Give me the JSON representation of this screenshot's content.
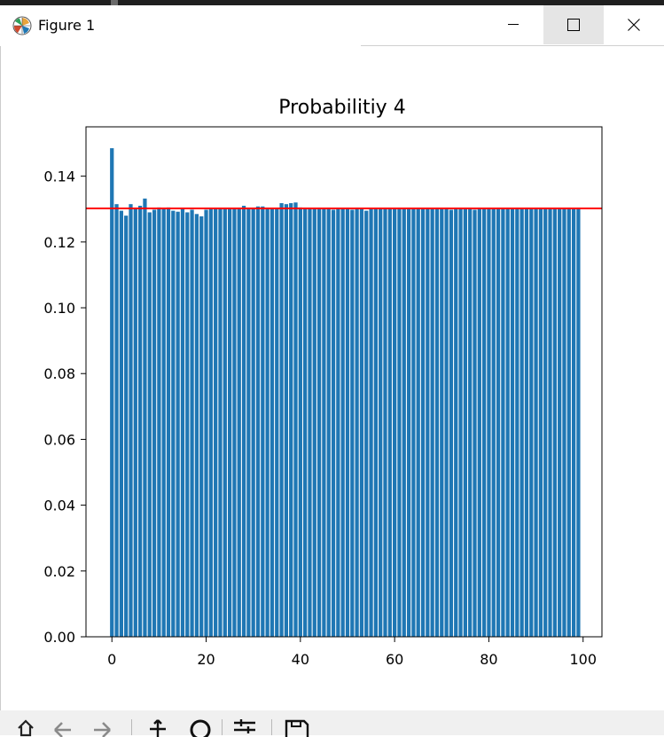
{
  "window": {
    "title": "Figure 1",
    "app_icon": "matplotlib-icon"
  },
  "controls": {
    "minimize_icon": "minimize-icon",
    "maximize_icon": "maximize-icon",
    "close_icon": "close-icon"
  },
  "toolbar": {
    "icons": [
      "home-icon",
      "back-icon",
      "forward-icon",
      "pan-icon",
      "zoom-icon",
      "configure-subplots-icon",
      "save-icon"
    ]
  },
  "chart_data": {
    "type": "bar",
    "title": "Probabilitiy 4",
    "xlabel": "",
    "ylabel": "",
    "x": [
      0,
      1,
      2,
      3,
      4,
      5,
      6,
      7,
      8,
      9,
      10,
      11,
      12,
      13,
      14,
      15,
      16,
      17,
      18,
      19,
      20,
      21,
      22,
      23,
      24,
      25,
      26,
      27,
      28,
      29,
      30,
      31,
      32,
      33,
      34,
      35,
      36,
      37,
      38,
      39,
      40,
      41,
      42,
      43,
      44,
      45,
      46,
      47,
      48,
      49,
      50,
      51,
      52,
      53,
      54,
      55,
      56,
      57,
      58,
      59,
      60,
      61,
      62,
      63,
      64,
      65,
      66,
      67,
      68,
      69,
      70,
      71,
      72,
      73,
      74,
      75,
      76,
      77,
      78,
      79,
      80,
      81,
      82,
      83,
      84,
      85,
      86,
      87,
      88,
      89,
      90,
      91,
      92,
      93,
      94,
      95,
      96,
      97,
      98,
      99
    ],
    "values": [
      0.1485,
      0.1315,
      0.1295,
      0.128,
      0.1315,
      0.13,
      0.131,
      0.1332,
      0.129,
      0.1298,
      0.1305,
      0.13,
      0.1305,
      0.1295,
      0.1292,
      0.13,
      0.129,
      0.1298,
      0.1285,
      0.1278,
      0.1298,
      0.13,
      0.13,
      0.1303,
      0.13,
      0.13,
      0.1302,
      0.1302,
      0.131,
      0.1303,
      0.1302,
      0.1308,
      0.1308,
      0.1302,
      0.13,
      0.13,
      0.1318,
      0.1315,
      0.1318,
      0.132,
      0.1305,
      0.1302,
      0.13,
      0.13,
      0.13,
      0.13,
      0.1302,
      0.1298,
      0.13,
      0.13,
      0.13,
      0.1298,
      0.13,
      0.13,
      0.1295,
      0.13,
      0.1302,
      0.13,
      0.13,
      0.13,
      0.13,
      0.13,
      0.13,
      0.1302,
      0.1302,
      0.13,
      0.13,
      0.13,
      0.13,
      0.13,
      0.13,
      0.1302,
      0.1298,
      0.13,
      0.13,
      0.13,
      0.13,
      0.1298,
      0.13,
      0.13,
      0.1302,
      0.13,
      0.13,
      0.13,
      0.13,
      0.13,
      0.13,
      0.13,
      0.13,
      0.13,
      0.13,
      0.13,
      0.13,
      0.13,
      0.13,
      0.13,
      0.13,
      0.13,
      0.13,
      0.13
    ],
    "hline": 0.1302,
    "xlim": [
      -5.5,
      104
    ],
    "ylim": [
      0,
      0.155
    ],
    "xticks": [
      0,
      20,
      40,
      60,
      80,
      100
    ],
    "xtick_labels": [
      "0",
      "20",
      "40",
      "60",
      "80",
      "100"
    ],
    "yticks": [
      0,
      0.02,
      0.04,
      0.06,
      0.08,
      0.1,
      0.12,
      0.14
    ],
    "ytick_labels": [
      "0.00",
      "0.02",
      "0.04",
      "0.06",
      "0.08",
      "0.10",
      "0.12",
      "0.14"
    ],
    "bar_color": "#1f77b4",
    "line_color": "#ff0000",
    "grid": false,
    "legend": "none"
  }
}
